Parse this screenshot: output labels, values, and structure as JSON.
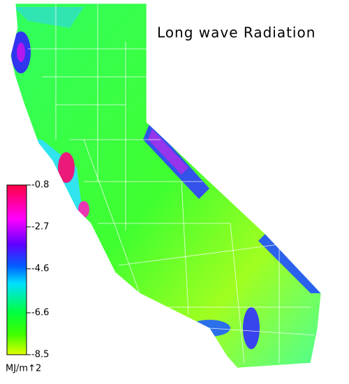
{
  "title": "Long wave Radiation",
  "colorbar": {
    "lim": [
      -8.5,
      -0.8
    ],
    "ticks": [
      -0.8,
      -2.7,
      -4.6,
      -6.6,
      -8.5
    ],
    "unit": "MJ/m↑2"
  }
}
